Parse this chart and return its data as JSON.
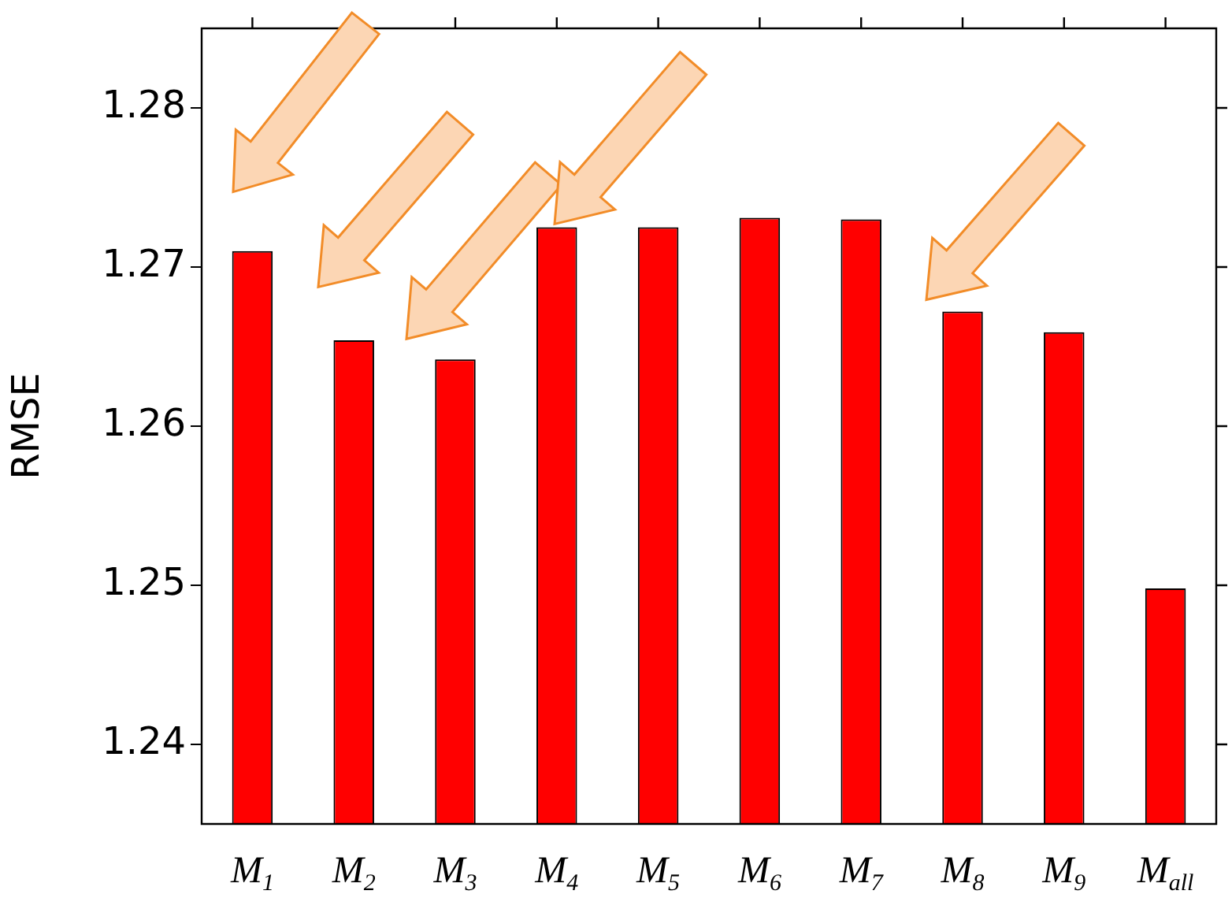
{
  "chart_data": {
    "type": "bar",
    "ylabel": "RMSE",
    "categories": [
      "M$_{1}$",
      "M$_{2}$",
      "M$_{3}$",
      "M$_{4}$",
      "M$_{5}$",
      "M$_{6}$",
      "M$_{7}$",
      "M$_{8}$",
      "M$_{9}$",
      "M$_{all}$"
    ],
    "series": [
      {
        "color": "#ff0000",
        "values": [
          1.271,
          1.2654,
          1.2642,
          1.2725,
          1.2725,
          1.2731,
          1.273,
          1.2672,
          1.2659,
          1.2498
        ]
      }
    ],
    "ylim": [
      1.235,
      1.285
    ],
    "yticks": [
      1.24,
      1.25,
      1.26,
      1.27,
      1.28
    ],
    "grid": false,
    "legend": false
  }
}
